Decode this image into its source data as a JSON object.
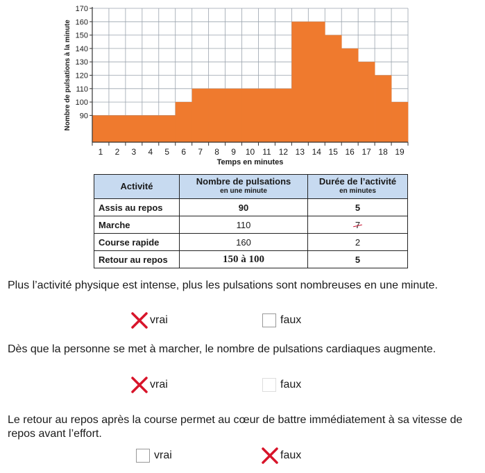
{
  "chart_data": {
    "type": "bar",
    "ylabel": "Nombre de pulsations à la minute",
    "xlabel": "Temps en minutes",
    "categories": [
      "1",
      "2",
      "3",
      "4",
      "5",
      "6",
      "7",
      "8",
      "9",
      "10",
      "11",
      "12",
      "13",
      "14",
      "15",
      "16",
      "17",
      "18",
      "19"
    ],
    "values": [
      90,
      90,
      90,
      90,
      90,
      100,
      110,
      110,
      110,
      110,
      110,
      110,
      160,
      160,
      150,
      140,
      130,
      120,
      100
    ],
    "ylim": [
      70,
      170
    ],
    "yticks": [
      90,
      100,
      110,
      120,
      130,
      140,
      150,
      160,
      170
    ],
    "grid": true,
    "bar_color": "#ef7a2e"
  },
  "table": {
    "headers": [
      {
        "title": "Activité",
        "sub": ""
      },
      {
        "title": "Nombre de pulsations",
        "sub": "en une minute"
      },
      {
        "title": "Durée de l’activité",
        "sub": "en minutes"
      }
    ],
    "rows": [
      {
        "activity": "Assis au repos",
        "pulses": "90",
        "duration": "5"
      },
      {
        "activity": "Marche",
        "pulses": "110",
        "duration": "7"
      },
      {
        "activity": "Course rapide",
        "pulses": "160",
        "duration": "2"
      },
      {
        "activity": "Retour au repos",
        "pulses": "150 à 100",
        "duration": "5"
      }
    ]
  },
  "questions": [
    {
      "text": "Plus l’activité physique est intense, plus les pulsations sont nombreuses en une minute.",
      "option_true": "vrai",
      "option_false": "faux",
      "checked": "vrai"
    },
    {
      "text": "Dès que la personne se met à marcher, le nombre de pulsations cardiaques augmente.",
      "option_true": "vrai",
      "option_false": "faux",
      "checked": "vrai"
    },
    {
      "text": "Le retour au repos après la course permet au cœur de battre immédiatement à sa vitesse de repos avant l’effort.",
      "option_true": "vrai",
      "option_false": "faux",
      "checked": "faux"
    }
  ],
  "colors": {
    "check_mark": "#d8142a",
    "header_bg": "#c7daf0"
  }
}
